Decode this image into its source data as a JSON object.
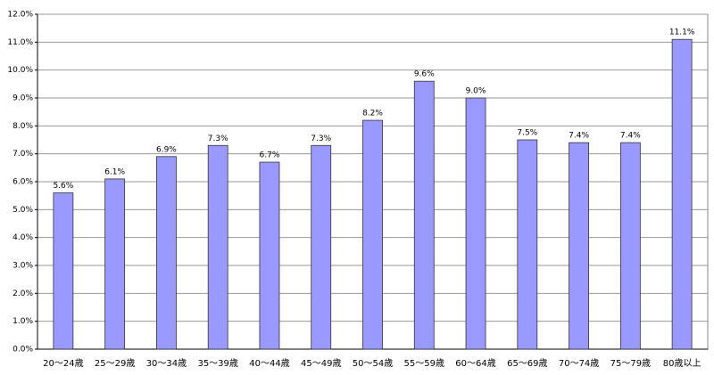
{
  "chart_data": {
    "type": "bar",
    "categories": [
      "20～24歳",
      "25～29歳",
      "30～34歳",
      "35～39歳",
      "40～44歳",
      "45～49歳",
      "50～54歳",
      "55～59歳",
      "60～64歳",
      "65～69歳",
      "70～74歳",
      "75～79歳",
      "80歳以上"
    ],
    "values": [
      5.6,
      6.1,
      6.9,
      7.3,
      6.7,
      7.3,
      8.2,
      9.6,
      9.0,
      7.5,
      7.4,
      7.4,
      11.1
    ],
    "value_labels": [
      "5.6%",
      "6.1%",
      "6.9%",
      "7.3%",
      "6.7%",
      "7.3%",
      "8.2%",
      "9.6%",
      "9.0%",
      "7.5%",
      "7.4%",
      "7.4%",
      "11.1%"
    ],
    "color": "#9999ff",
    "ylim": [
      0,
      12
    ],
    "yticks": [
      {
        "value": 0,
        "label": "0.0%"
      },
      {
        "value": 1,
        "label": "1.0%"
      },
      {
        "value": 2,
        "label": "2.0%"
      },
      {
        "value": 3,
        "label": "3.0%"
      },
      {
        "value": 4,
        "label": "4.0%"
      },
      {
        "value": 5,
        "label": "5.0%"
      },
      {
        "value": 6,
        "label": "6.0%"
      },
      {
        "value": 7,
        "label": "7.0%"
      },
      {
        "value": 8,
        "label": "8.0%"
      },
      {
        "value": 9,
        "label": "9.0%"
      },
      {
        "value": 10,
        "label": "10.0%"
      },
      {
        "value": 11,
        "label": "11.0%"
      },
      {
        "value": 12,
        "label": "12.0%"
      }
    ],
    "grid": true
  }
}
